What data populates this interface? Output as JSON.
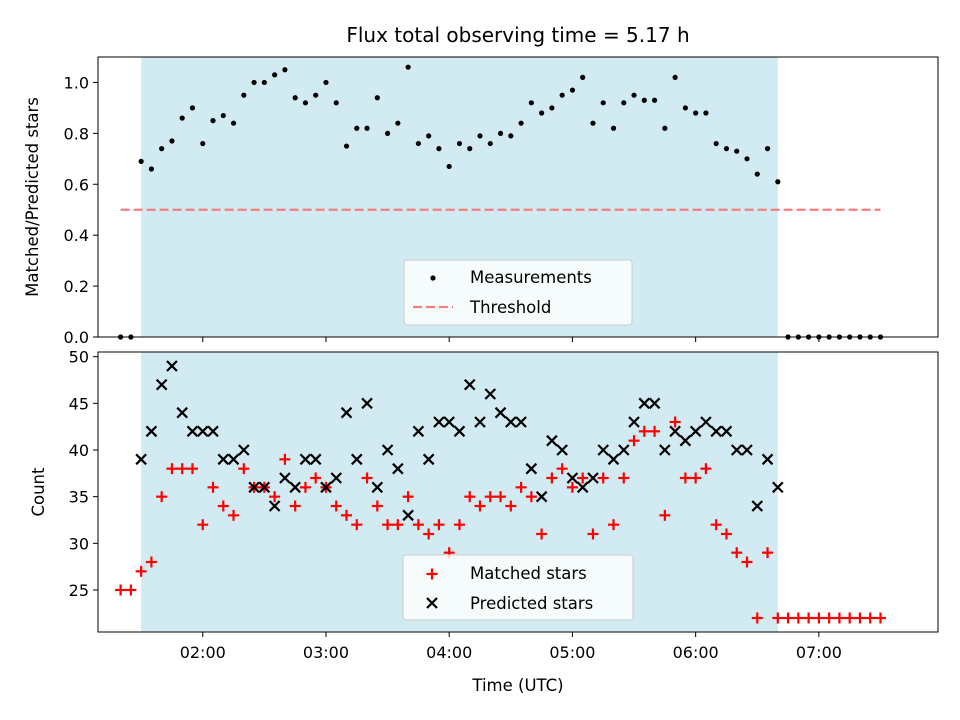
{
  "figure": {
    "title": "Flux total observing time = 5.17 h",
    "xlabel": "Time (UTC)",
    "x_tick_labels": [
      "02:00",
      "03:00",
      "04:00",
      "05:00",
      "06:00",
      "07:00"
    ],
    "colors": {
      "shade": "#add8e6",
      "matched": "#ff0000",
      "predicted": "#000000",
      "threshold": "#f08080",
      "measurement": "#000000"
    }
  },
  "chart_data": [
    {
      "type": "scatter",
      "name": "ratio-panel",
      "ylabel": "Matched/Predicted stars",
      "xlim": [
        "01:09",
        "07:58"
      ],
      "ylim": [
        0,
        1.1
      ],
      "y_ticks": [
        "0.0",
        "0.2",
        "0.4",
        "0.6",
        "0.8",
        "1.0"
      ],
      "shaded_span": [
        "01:30",
        "06:40"
      ],
      "legend_position": "lower center",
      "legend": [
        "Measurements",
        "Threshold"
      ],
      "threshold": {
        "label": "Threshold",
        "value": 0.5,
        "x_range": [
          "01:20",
          "07:30"
        ]
      },
      "series": [
        {
          "name": "Measurements",
          "x": [
            "01:20",
            "01:25",
            "01:30",
            "01:35",
            "01:40",
            "01:45",
            "01:50",
            "01:55",
            "02:00",
            "02:05",
            "02:10",
            "02:15",
            "02:20",
            "02:25",
            "02:30",
            "02:35",
            "02:40",
            "02:45",
            "02:50",
            "02:55",
            "03:00",
            "03:05",
            "03:10",
            "03:15",
            "03:20",
            "03:25",
            "03:30",
            "03:35",
            "03:40",
            "03:45",
            "03:50",
            "03:55",
            "04:00",
            "04:05",
            "04:10",
            "04:15",
            "04:20",
            "04:25",
            "04:30",
            "04:35",
            "04:40",
            "04:45",
            "04:50",
            "04:55",
            "05:00",
            "05:05",
            "05:10",
            "05:15",
            "05:20",
            "05:25",
            "05:30",
            "05:35",
            "05:40",
            "05:45",
            "05:50",
            "05:55",
            "06:00",
            "06:05",
            "06:10",
            "06:15",
            "06:20",
            "06:25",
            "06:30",
            "06:35",
            "06:40",
            "06:45",
            "06:50",
            "06:55",
            "07:00",
            "07:05",
            "07:10",
            "07:15",
            "07:20",
            "07:25",
            "07:30"
          ],
          "values": [
            0.0,
            0.0,
            0.69,
            0.66,
            0.74,
            0.77,
            0.86,
            0.9,
            0.76,
            0.85,
            0.87,
            0.84,
            0.95,
            1.0,
            1.0,
            1.03,
            1.05,
            0.94,
            0.92,
            0.95,
            1.0,
            0.92,
            0.75,
            0.82,
            0.82,
            0.94,
            0.8,
            0.84,
            1.06,
            0.76,
            0.79,
            0.74,
            0.67,
            0.76,
            0.74,
            0.79,
            0.76,
            0.8,
            0.79,
            0.84,
            0.92,
            0.88,
            0.9,
            0.95,
            0.97,
            1.02,
            0.84,
            0.92,
            0.82,
            0.92,
            0.95,
            0.93,
            0.93,
            0.82,
            1.02,
            0.9,
            0.88,
            0.88,
            0.76,
            0.74,
            0.73,
            0.7,
            0.64,
            0.74,
            0.61,
            0.0,
            0.0,
            0.0,
            0.0,
            0.0,
            0.0,
            0.0,
            0.0,
            0.0,
            0.0
          ]
        }
      ]
    },
    {
      "type": "scatter",
      "name": "count-panel",
      "ylabel": "Count",
      "xlim": [
        "01:09",
        "07:58"
      ],
      "ylim": [
        20.5,
        50.5
      ],
      "y_ticks": [
        "25",
        "30",
        "35",
        "40",
        "45",
        "50"
      ],
      "shaded_span": [
        "01:30",
        "06:40"
      ],
      "legend_position": "lower center",
      "legend": [
        "Matched stars",
        "Predicted stars"
      ],
      "series": [
        {
          "name": "Matched stars",
          "marker": "plus",
          "x": [
            "01:20",
            "01:25",
            "01:30",
            "01:35",
            "01:40",
            "01:45",
            "01:50",
            "01:55",
            "02:00",
            "02:05",
            "02:10",
            "02:15",
            "02:20",
            "02:25",
            "02:30",
            "02:35",
            "02:40",
            "02:45",
            "02:50",
            "02:55",
            "03:00",
            "03:05",
            "03:10",
            "03:15",
            "03:20",
            "03:25",
            "03:30",
            "03:35",
            "03:40",
            "03:45",
            "03:50",
            "03:55",
            "04:00",
            "04:05",
            "04:10",
            "04:15",
            "04:20",
            "04:25",
            "04:30",
            "04:35",
            "04:40",
            "04:45",
            "04:50",
            "04:55",
            "05:00",
            "05:05",
            "05:10",
            "05:15",
            "05:20",
            "05:25",
            "05:30",
            "05:35",
            "05:40",
            "05:45",
            "05:50",
            "05:55",
            "06:00",
            "06:05",
            "06:10",
            "06:15",
            "06:20",
            "06:25",
            "06:30",
            "06:35",
            "06:40",
            "06:45",
            "06:50",
            "06:55",
            "07:00",
            "07:05",
            "07:10",
            "07:15",
            "07:20",
            "07:25",
            "07:30"
          ],
          "values": [
            25,
            25,
            27,
            28,
            35,
            38,
            38,
            38,
            32,
            36,
            34,
            33,
            38,
            36,
            36,
            35,
            39,
            34,
            36,
            37,
            36,
            34,
            33,
            32,
            37,
            34,
            32,
            32,
            35,
            32,
            31,
            32,
            29,
            32,
            35,
            34,
            35,
            35,
            34,
            36,
            35,
            31,
            37,
            38,
            36,
            37,
            31,
            37,
            32,
            37,
            41,
            42,
            42,
            33,
            43,
            37,
            37,
            38,
            32,
            31,
            29,
            28,
            22,
            29,
            22,
            22,
            22,
            22,
            22,
            22,
            22,
            22,
            22,
            22,
            22
          ]
        },
        {
          "name": "Predicted stars",
          "marker": "x",
          "x": [
            "01:30",
            "01:35",
            "01:40",
            "01:45",
            "01:50",
            "01:55",
            "02:00",
            "02:05",
            "02:10",
            "02:15",
            "02:20",
            "02:25",
            "02:30",
            "02:35",
            "02:40",
            "02:45",
            "02:50",
            "02:55",
            "03:00",
            "03:05",
            "03:10",
            "03:15",
            "03:20",
            "03:25",
            "03:30",
            "03:35",
            "03:40",
            "03:45",
            "03:50",
            "03:55",
            "04:00",
            "04:05",
            "04:10",
            "04:15",
            "04:20",
            "04:25",
            "04:30",
            "04:35",
            "04:40",
            "04:45",
            "04:50",
            "04:55",
            "05:00",
            "05:05",
            "05:10",
            "05:15",
            "05:20",
            "05:25",
            "05:30",
            "05:35",
            "05:40",
            "05:45",
            "05:50",
            "05:55",
            "06:00",
            "06:05",
            "06:10",
            "06:15",
            "06:20",
            "06:25",
            "06:30",
            "06:35",
            "06:40"
          ],
          "values": [
            39,
            42,
            47,
            49,
            44,
            42,
            42,
            42,
            39,
            39,
            40,
            36,
            36,
            34,
            37,
            36,
            39,
            39,
            36,
            37,
            44,
            39,
            45,
            36,
            40,
            38,
            33,
            42,
            39,
            43,
            43,
            42,
            47,
            43,
            46,
            44,
            43,
            43,
            38,
            35,
            41,
            40,
            37,
            36,
            37,
            40,
            39,
            40,
            43,
            45,
            45,
            40,
            42,
            41,
            42,
            43,
            42,
            42,
            40,
            40,
            34,
            39,
            36
          ]
        }
      ]
    }
  ]
}
